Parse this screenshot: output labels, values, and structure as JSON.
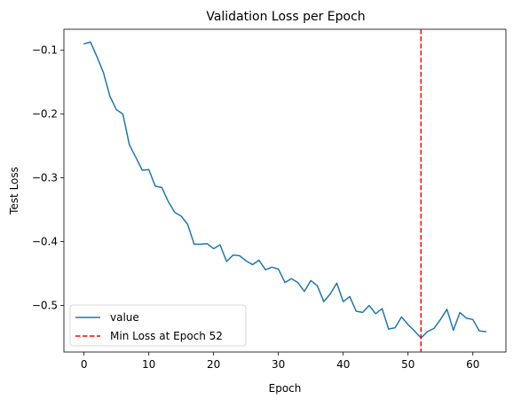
{
  "chart_data": {
    "type": "line",
    "title": "Validation Loss per Epoch",
    "xlabel": "Epoch",
    "ylabel": "Test Loss",
    "xlim": [
      -3.1,
      65.1
    ],
    "ylim": [
      -0.573,
      -0.067
    ],
    "xticks": [
      0,
      10,
      20,
      30,
      40,
      50,
      60
    ],
    "xtick_labels": [
      "0",
      "10",
      "20",
      "30",
      "40",
      "50",
      "60"
    ],
    "yticks": [
      -0.1,
      -0.2,
      -0.3,
      -0.4,
      -0.5
    ],
    "ytick_labels": [
      "−0.1",
      "−0.2",
      "−0.3",
      "−0.4",
      "−0.5"
    ],
    "grid": false,
    "legend_position": "lower-left",
    "series": [
      {
        "name": "value",
        "color": "#1f77b4",
        "x": [
          0,
          1,
          2,
          3,
          4,
          5,
          6,
          7,
          8,
          9,
          10,
          11,
          12,
          13,
          14,
          15,
          16,
          17,
          18,
          19,
          20,
          21,
          22,
          23,
          24,
          25,
          26,
          27,
          28,
          29,
          30,
          31,
          32,
          33,
          34,
          35,
          36,
          37,
          38,
          39,
          40,
          41,
          42,
          43,
          44,
          45,
          46,
          47,
          48,
          49,
          50,
          51,
          52,
          53,
          54,
          55,
          56,
          57,
          58,
          59,
          60,
          61,
          62
        ],
        "values": [
          -0.09,
          -0.087,
          -0.11,
          -0.135,
          -0.172,
          -0.193,
          -0.2,
          -0.248,
          -0.268,
          -0.288,
          -0.287,
          -0.313,
          -0.315,
          -0.337,
          -0.354,
          -0.36,
          -0.373,
          -0.404,
          -0.404,
          -0.403,
          -0.411,
          -0.405,
          -0.431,
          -0.421,
          -0.422,
          -0.43,
          -0.436,
          -0.429,
          -0.444,
          -0.44,
          -0.443,
          -0.464,
          -0.458,
          -0.464,
          -0.478,
          -0.461,
          -0.469,
          -0.494,
          -0.482,
          -0.465,
          -0.494,
          -0.486,
          -0.509,
          -0.511,
          -0.5,
          -0.513,
          -0.505,
          -0.537,
          -0.535,
          -0.518,
          -0.53,
          -0.54,
          -0.551,
          -0.541,
          -0.536,
          -0.522,
          -0.506,
          -0.539,
          -0.511,
          -0.52,
          -0.522,
          -0.54,
          -0.541
        ]
      }
    ],
    "vline": {
      "name": "Min Loss at Epoch 52",
      "x": 52,
      "color": "#ff0000",
      "style": "dashed"
    }
  }
}
